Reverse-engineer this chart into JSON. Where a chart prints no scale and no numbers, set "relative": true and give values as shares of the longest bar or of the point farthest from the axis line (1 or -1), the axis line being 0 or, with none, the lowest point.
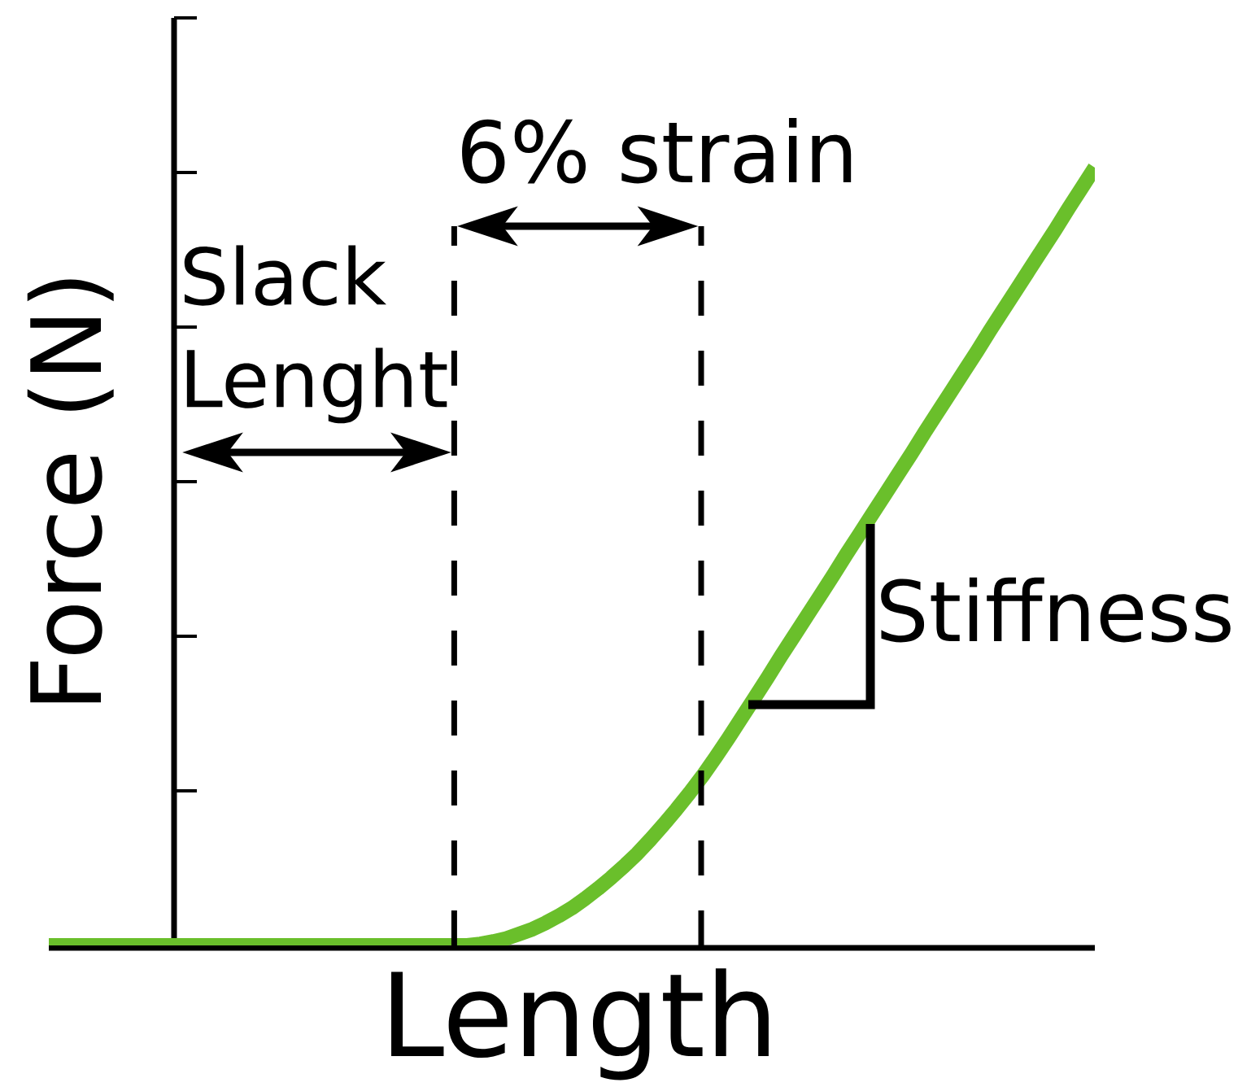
{
  "chart_data": {
    "type": "line",
    "xlabel": "Length",
    "ylabel": "Force (N)",
    "relative": true,
    "categories": [
      null,
      null,
      null,
      null,
      null,
      null,
      null,
      null,
      null,
      null,
      null,
      null,
      null,
      null,
      null,
      null,
      null,
      null,
      null,
      null,
      null,
      null,
      null,
      null,
      null,
      null,
      null,
      null,
      null,
      null,
      null,
      null,
      null,
      null,
      null,
      null,
      null,
      null,
      null,
      null,
      null,
      null,
      null,
      null,
      null,
      null,
      null,
      null,
      null,
      null,
      null,
      null,
      null,
      null,
      null,
      null,
      null,
      null,
      null,
      null,
      null,
      null,
      null,
      null,
      null,
      null,
      null,
      null,
      null,
      null,
      null,
      null,
      null,
      null,
      null,
      null,
      null,
      null,
      null,
      null,
      null
    ],
    "values": [
      0,
      0,
      0,
      0,
      0,
      0,
      0,
      0,
      0,
      0,
      0,
      0,
      0,
      0,
      0,
      0,
      0,
      0,
      0,
      0,
      0,
      0,
      0,
      0,
      0,
      0,
      0,
      0,
      0,
      0,
      0,
      0,
      0,
      0.002,
      0.005,
      0.009,
      0.015,
      0.021,
      0.029,
      0.038,
      0.048,
      0.06,
      0.073,
      0.087,
      0.102,
      0.118,
      0.136,
      0.155,
      0.175,
      0.196,
      0.218,
      0.242,
      0.267,
      0.293,
      0.319,
      0.345,
      0.372,
      0.398,
      0.424,
      0.45,
      0.476,
      0.503,
      0.529,
      0.555,
      0.581,
      0.607,
      0.633,
      0.66,
      0.686,
      0.712,
      0.738,
      0.764,
      0.791,
      0.817,
      0.843,
      0.869,
      0.895,
      0.921,
      0.948,
      0.974,
      1
    ],
    "color": "#6abf2b",
    "annotations": [
      "6% strain",
      "Slack Lenght",
      "Stiffness"
    ]
  }
}
